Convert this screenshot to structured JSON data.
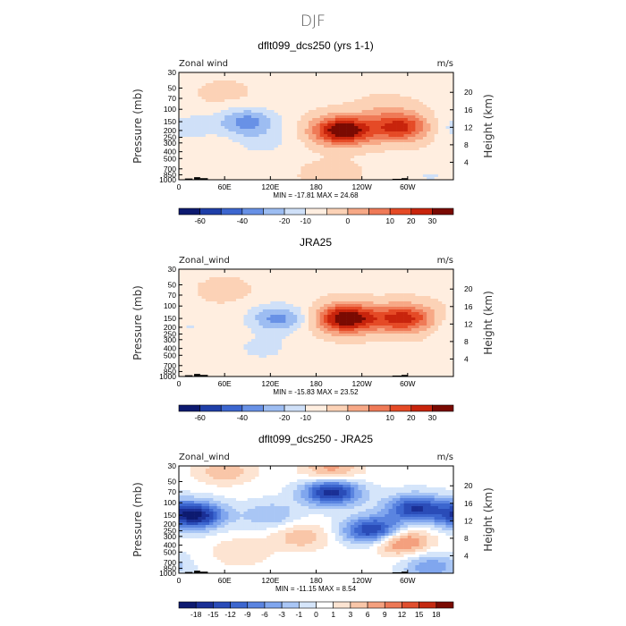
{
  "figure": {
    "title": "DJF"
  },
  "chart_data": [
    {
      "type": "heatmap",
      "title": "dflt099_dcs250 (yrs 1-1)",
      "corner_left": "Zonal wind",
      "corner_right": "m/s",
      "ylabel": "Pressure (mb)",
      "ylabel_right": "Height (km)",
      "xticks": [
        "0",
        "60E",
        "120E",
        "180",
        "120W",
        "60W"
      ],
      "yticks": [
        "30",
        "50",
        "70",
        "100",
        "150",
        "200",
        "250",
        "300",
        "400",
        "500",
        "700",
        "850",
        "1000"
      ],
      "yticks_right": [
        "20",
        "16",
        "12",
        "8",
        "4"
      ],
      "min_max_text": "MIN = -17.81   MAX =  24.68",
      "colorbar": {
        "colors": [
          "#0d1a70",
          "#1f3fa8",
          "#3c66cf",
          "#6891e6",
          "#9dbdf2",
          "#cfe0f8",
          "#ffeee0",
          "#fcd2b6",
          "#f7a886",
          "#ef7a57",
          "#e54a26",
          "#c8240c",
          "#7a0a02"
        ],
        "labels": [
          "-60",
          "-40",
          "-20",
          "-10",
          "0",
          "10",
          "20",
          "30"
        ],
        "label_positions": [
          1,
          3,
          5,
          6,
          8,
          10,
          11,
          12
        ]
      },
      "blobs": [
        {
          "lon": 215,
          "p": 200,
          "value": 24
        },
        {
          "lon": 290,
          "p": 180,
          "value": 17
        },
        {
          "lon": 90,
          "p": 150,
          "value": -12
        },
        {
          "lon": 110,
          "p": 300,
          "value": -4
        },
        {
          "lon": 10,
          "p": 180,
          "value": -5
        },
        {
          "lon": 270,
          "p": 100,
          "value": 3
        },
        {
          "lon": 60,
          "p": 60,
          "value": 2
        },
        {
          "lon": 200,
          "p": 850,
          "value": 3
        },
        {
          "lon": 330,
          "p": 900,
          "value": -3
        }
      ],
      "base": 1
    },
    {
      "type": "heatmap",
      "title": "JRA25",
      "corner_left": "Zonal_wind",
      "corner_right": "m/s",
      "ylabel": "Pressure (mb)",
      "ylabel_right": "Height (km)",
      "xticks": [
        "0",
        "60E",
        "120E",
        "180",
        "120W",
        "60W"
      ],
      "yticks": [
        "30",
        "50",
        "70",
        "100",
        "150",
        "200",
        "250",
        "300",
        "400",
        "500",
        "700",
        "850",
        "1000"
      ],
      "yticks_right": [
        "20",
        "16",
        "12",
        "8",
        "4"
      ],
      "min_max_text": "MIN = -15.83   MAX =  23.52",
      "colorbar": {
        "colors": [
          "#0d1a70",
          "#1f3fa8",
          "#3c66cf",
          "#6891e6",
          "#9dbdf2",
          "#cfe0f8",
          "#ffeee0",
          "#fcd2b6",
          "#f7a886",
          "#ef7a57",
          "#e54a26",
          "#c8240c",
          "#7a0a02"
        ],
        "labels": [
          "-60",
          "-40",
          "-20",
          "-10",
          "0",
          "10",
          "20",
          "30"
        ],
        "label_positions": [
          1,
          3,
          5,
          6,
          8,
          10,
          11,
          12
        ]
      },
      "blobs": [
        {
          "lon": 220,
          "p": 150,
          "value": 23
        },
        {
          "lon": 295,
          "p": 150,
          "value": 17
        },
        {
          "lon": 130,
          "p": 150,
          "value": -11
        },
        {
          "lon": 110,
          "p": 400,
          "value": -4
        },
        {
          "lon": 10,
          "p": 200,
          "value": -3
        },
        {
          "lon": 60,
          "p": 60,
          "value": 2
        },
        {
          "lon": 330,
          "p": 900,
          "value": -2
        }
      ],
      "base": 1
    },
    {
      "type": "heatmap",
      "title": "dflt099_dcs250 - JRA25",
      "corner_left": "Zonal_wind",
      "corner_right": "m/s",
      "ylabel": "Pressure (mb)",
      "ylabel_right": "Height (km)",
      "xticks": [
        "0",
        "60E",
        "120E",
        "180",
        "120W",
        "60W"
      ],
      "yticks": [
        "30",
        "50",
        "70",
        "100",
        "150",
        "200",
        "250",
        "300",
        "400",
        "500",
        "700",
        "850",
        "1000"
      ],
      "yticks_right": [
        "20",
        "16",
        "12",
        "8",
        "4"
      ],
      "min_max_text": "MIN = -11.15   MAX =   8.54",
      "colorbar": {
        "colors": [
          "#0d1a70",
          "#1a2f95",
          "#2a4cb8",
          "#3c66cf",
          "#5a84e0",
          "#80a6ee",
          "#a9c6f5",
          "#d5e5fa",
          "#ffffff",
          "#fde4d2",
          "#f9c6a8",
          "#f4a07e",
          "#ec7856",
          "#e04e2e",
          "#c42a12",
          "#7a0a02"
        ],
        "labels": [
          "-18",
          "-15",
          "-12",
          "-9",
          "-6",
          "-3",
          "-1",
          "0",
          "1",
          "3",
          "6",
          "9",
          "12",
          "15",
          "18"
        ],
        "label_positions": [
          1,
          2,
          3,
          4,
          5,
          6,
          7,
          8,
          9,
          10,
          11,
          12,
          13,
          14,
          15
        ]
      },
      "blobs": [
        {
          "lon": 20,
          "p": 150,
          "value": -10
        },
        {
          "lon": 200,
          "p": 70,
          "value": -9
        },
        {
          "lon": 310,
          "p": 120,
          "value": -8
        },
        {
          "lon": 255,
          "p": 250,
          "value": -9
        },
        {
          "lon": 160,
          "p": 300,
          "value": 3
        },
        {
          "lon": 290,
          "p": 350,
          "value": 6
        },
        {
          "lon": 200,
          "p": 35,
          "value": 4
        },
        {
          "lon": 60,
          "p": 35,
          "value": 3
        },
        {
          "lon": 80,
          "p": 500,
          "value": 2
        },
        {
          "lon": 330,
          "p": 800,
          "value": -4
        },
        {
          "lon": 120,
          "p": 150,
          "value": -3
        }
      ],
      "base": 0.5
    }
  ]
}
